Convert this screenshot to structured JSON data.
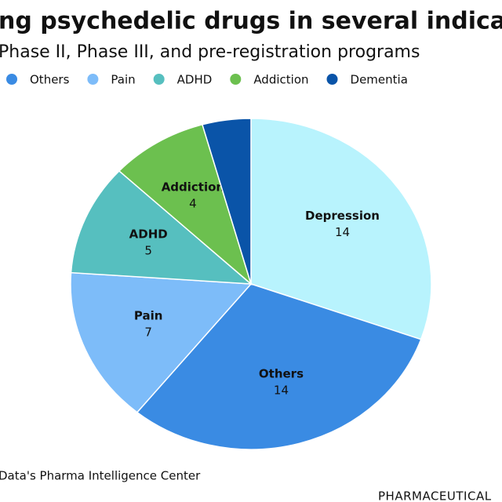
{
  "chart_data": {
    "type": "pie",
    "title": "ng psychedelic drugs in several indicatio",
    "subtitle": "Phase II, Phase III, and pre-registration programs",
    "categories": [
      "Depression",
      "Others",
      "Pain",
      "ADHD",
      "Addiction",
      "Dementia"
    ],
    "values": [
      14,
      14,
      7,
      5,
      4,
      2
    ],
    "colors": [
      "#b8f3fd",
      "#3a8be3",
      "#7dbcf9",
      "#56bfbf",
      "#6cc04f",
      "#0a54a8"
    ],
    "source": "Data's Pharma Intelligence Center",
    "brand": "PHARMACEUTICAL"
  }
}
